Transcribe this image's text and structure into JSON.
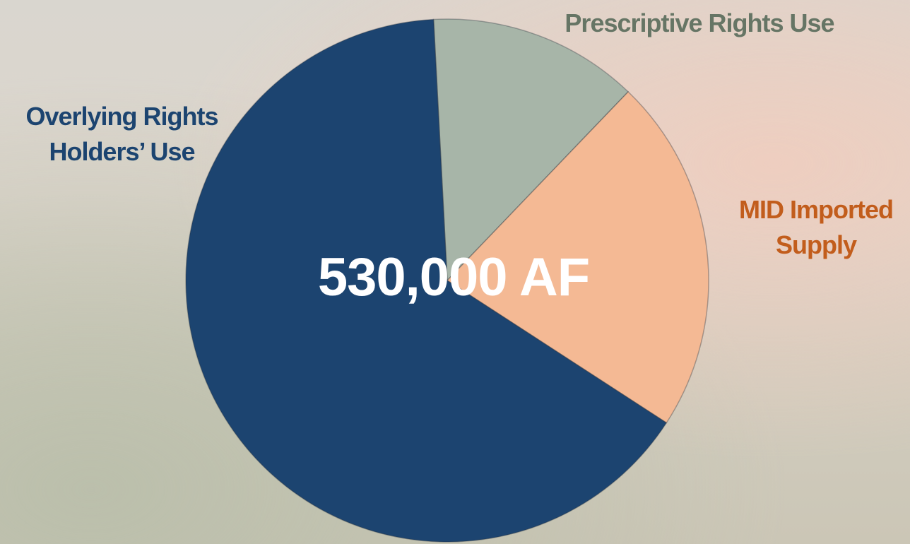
{
  "chart_data": {
    "type": "pie",
    "categories": [
      "Prescriptive Rights Use",
      "MID Imported Supply",
      "Overlying Rights Holders’ Use"
    ],
    "values": [
      13,
      22,
      65
    ],
    "colors": [
      "#a7b5a8",
      "#f4b994",
      "#1c4470"
    ],
    "center_label": "530,000 AF"
  }
}
